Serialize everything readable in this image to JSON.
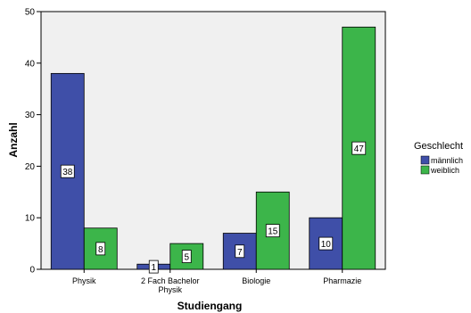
{
  "chart_data": {
    "type": "bar",
    "categories": [
      "Physik",
      "2 Fach Bachelor Physik",
      "Biologie",
      "Pharmazie"
    ],
    "category_label_lines": [
      [
        "Physik"
      ],
      [
        "2 Fach Bachelor",
        "Physik"
      ],
      [
        "Biologie"
      ],
      [
        "Pharmazie"
      ]
    ],
    "series": [
      {
        "name": "männlich",
        "values": [
          38,
          1,
          7,
          10
        ],
        "color": "#3f4fa8"
      },
      {
        "name": "weiblich",
        "values": [
          8,
          5,
          15,
          47
        ],
        "color": "#3cb54a"
      }
    ],
    "xlabel": "Studiengang",
    "ylabel": "Anzahl",
    "ylim": [
      0,
      50
    ],
    "yticks": [
      0,
      10,
      20,
      30,
      40,
      50
    ],
    "legend_title": "Geschlecht",
    "legend_position": "right",
    "data_labels": true,
    "plot_background": "#f0f0f0"
  }
}
